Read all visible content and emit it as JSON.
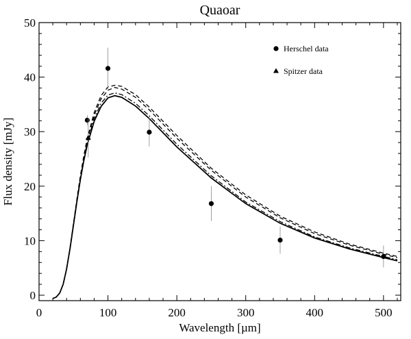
{
  "chart_data": {
    "type": "scatter",
    "title": "Quaoar",
    "xlabel": "Wavelength [µm]",
    "ylabel": "Flux density [mJy]",
    "xlim": [
      0,
      525
    ],
    "ylim": [
      -1,
      50
    ],
    "xticks": [
      0,
      100,
      200,
      300,
      400,
      500
    ],
    "yticks": [
      0,
      10,
      20,
      30,
      40,
      50
    ],
    "xtick_labels": [
      "0",
      "100",
      "200",
      "300",
      "400",
      "500"
    ],
    "ytick_labels": [
      "0",
      "10",
      "20",
      "30",
      "40",
      "50"
    ],
    "grid": false,
    "legend_position": "top-right",
    "series": [
      {
        "name": "Herschel data",
        "marker": "circle",
        "points": [
          {
            "x": 70,
            "y": 32.1,
            "err": 0.9
          },
          {
            "x": 100,
            "y": 41.6,
            "err": 3.8
          },
          {
            "x": 160,
            "y": 29.9,
            "err": 2.6
          },
          {
            "x": 250,
            "y": 16.8,
            "err": 3.2
          },
          {
            "x": 350,
            "y": 10.1,
            "err": 2.5
          },
          {
            "x": 500,
            "y": 7.1,
            "err": 2.0
          }
        ]
      },
      {
        "name": "Spitzer data",
        "marker": "triangle",
        "points": [
          {
            "x": 71.4,
            "y": 28.9,
            "err": 3.6
          }
        ]
      }
    ],
    "model_curves": [
      {
        "style": "solid",
        "x": [
          20,
          25,
          30,
          35,
          40,
          45,
          50,
          55,
          60,
          65,
          70,
          80,
          90,
          100,
          110,
          120,
          140,
          160,
          180,
          200,
          250,
          300,
          350,
          400,
          450,
          500,
          520
        ],
        "y": [
          -0.6,
          -0.35,
          0.4,
          2.0,
          4.8,
          8.6,
          12.9,
          17.2,
          21.2,
          24.7,
          27.6,
          31.9,
          34.6,
          36.2,
          36.6,
          36.3,
          34.7,
          32.4,
          29.8,
          27.2,
          21.5,
          16.8,
          13.2,
          10.5,
          8.5,
          6.9,
          6.3
        ]
      },
      {
        "style": "dash-dot",
        "x": [
          20,
          25,
          30,
          35,
          40,
          45,
          50,
          55,
          60,
          65,
          70,
          80,
          90,
          100,
          110,
          120,
          140,
          160,
          180,
          200,
          250,
          300,
          350,
          400,
          450,
          500,
          520
        ],
        "y": [
          -0.6,
          -0.35,
          0.4,
          2.0,
          4.8,
          8.7,
          13.0,
          17.3,
          21.4,
          25.0,
          28.0,
          32.4,
          35.2,
          36.7,
          37.1,
          36.8,
          35.2,
          32.9,
          30.3,
          27.7,
          21.9,
          17.1,
          13.5,
          10.7,
          8.7,
          7.1,
          6.5
        ]
      },
      {
        "style": "dashed",
        "x": [
          20,
          25,
          30,
          35,
          40,
          45,
          50,
          55,
          60,
          65,
          70,
          80,
          90,
          100,
          110,
          120,
          140,
          160,
          180,
          200,
          250,
          300,
          350,
          400,
          450,
          500,
          520
        ],
        "y": [
          -0.6,
          -0.35,
          0.4,
          2.0,
          4.8,
          8.7,
          13.1,
          17.5,
          21.6,
          25.3,
          28.4,
          33.0,
          36.0,
          37.6,
          38.1,
          37.8,
          36.3,
          34.0,
          31.4,
          28.8,
          22.9,
          18.0,
          14.2,
          11.3,
          9.2,
          7.5,
          6.9
        ]
      },
      {
        "style": "dashed",
        "x": [
          20,
          25,
          30,
          35,
          40,
          45,
          50,
          55,
          60,
          65,
          70,
          80,
          90,
          100,
          110,
          120,
          140,
          160,
          180,
          200,
          250,
          300,
          350,
          400,
          450,
          500,
          520
        ],
        "y": [
          -0.6,
          -0.35,
          0.4,
          2.0,
          4.8,
          8.8,
          13.2,
          17.7,
          21.9,
          25.6,
          28.8,
          33.5,
          36.6,
          38.2,
          38.5,
          38.3,
          36.8,
          34.5,
          31.9,
          29.3,
          23.3,
          18.4,
          14.5,
          11.6,
          9.4,
          7.7,
          7.1
        ]
      }
    ]
  }
}
